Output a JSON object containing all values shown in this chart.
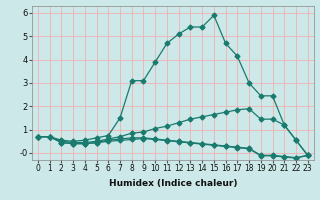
{
  "xlabel": "Humidex (Indice chaleur)",
  "background_color": "#cce8e8",
  "grid_color": "#f0b0b0",
  "line_color": "#1a7a6e",
  "x_ticks": [
    0,
    1,
    2,
    3,
    4,
    5,
    6,
    7,
    8,
    9,
    10,
    11,
    12,
    13,
    14,
    15,
    16,
    17,
    18,
    19,
    20,
    21,
    22,
    23
  ],
  "ylim": [
    -0.3,
    6.3
  ],
  "xlim": [
    -0.5,
    23.5
  ],
  "yticks": [
    0,
    1,
    2,
    3,
    4,
    5,
    6
  ],
  "ytick_labels": [
    "-0",
    "1",
    "2",
    "3",
    "4",
    "5",
    "6"
  ],
  "series": [
    {
      "x": [
        0,
        1,
        2,
        3,
        4,
        5,
        6,
        7,
        8,
        9,
        10,
        11,
        12,
        13,
        14,
        15,
        16,
        17,
        18,
        19,
        20,
        21,
        22,
        23
      ],
      "y": [
        0.7,
        0.7,
        0.55,
        0.5,
        0.55,
        0.65,
        0.75,
        1.5,
        3.1,
        3.1,
        3.9,
        4.7,
        5.1,
        5.4,
        5.4,
        5.9,
        4.7,
        4.15,
        3.0,
        2.45,
        2.45,
        1.2,
        0.55,
        -0.1
      ]
    },
    {
      "x": [
        0,
        1,
        2,
        3,
        4,
        5,
        6,
        7,
        8,
        9,
        10,
        11,
        12,
        13,
        14,
        15,
        16,
        17,
        18,
        19,
        20,
        21,
        22,
        23
      ],
      "y": [
        0.7,
        0.7,
        0.5,
        0.45,
        0.45,
        0.5,
        0.6,
        0.7,
        0.85,
        0.9,
        1.05,
        1.15,
        1.3,
        1.45,
        1.55,
        1.65,
        1.75,
        1.85,
        1.9,
        1.45,
        1.45,
        1.2,
        0.55,
        -0.1
      ]
    },
    {
      "x": [
        0,
        1,
        2,
        3,
        4,
        5,
        6,
        7,
        8,
        9,
        10,
        11,
        12,
        13,
        14,
        15,
        16,
        17,
        18,
        19,
        20,
        21,
        22,
        23
      ],
      "y": [
        0.7,
        0.7,
        0.45,
        0.4,
        0.4,
        0.45,
        0.55,
        0.6,
        0.65,
        0.65,
        0.6,
        0.55,
        0.5,
        0.45,
        0.4,
        0.35,
        0.3,
        0.25,
        0.2,
        -0.1,
        -0.1,
        -0.15,
        -0.2,
        -0.1
      ]
    },
    {
      "x": [
        0,
        1,
        2,
        3,
        4,
        5,
        6,
        7,
        8,
        9,
        10,
        11,
        12,
        13,
        14,
        15,
        16,
        17,
        18,
        19,
        20,
        21,
        22,
        23
      ],
      "y": [
        0.7,
        0.7,
        0.45,
        0.4,
        0.4,
        0.44,
        0.5,
        0.54,
        0.58,
        0.62,
        0.58,
        0.53,
        0.48,
        0.43,
        0.38,
        0.33,
        0.28,
        0.23,
        0.18,
        -0.12,
        -0.12,
        -0.17,
        -0.22,
        -0.1
      ]
    }
  ],
  "markersize": 2.5,
  "linewidth": 0.9,
  "xlabel_fontsize": 6.5,
  "tick_fontsize": 5.5
}
